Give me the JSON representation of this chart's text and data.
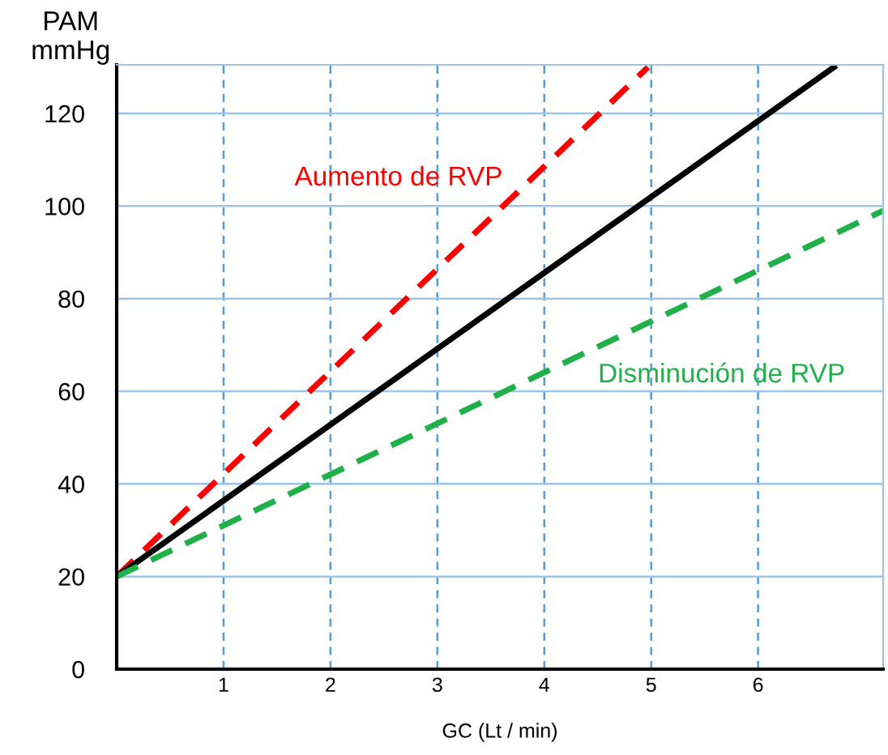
{
  "chart_data": {
    "type": "line",
    "xlabel": "GC (Lt / min)",
    "ylabel": "PAM\nmmHg",
    "xlim": [
      0,
      7.17
    ],
    "ylim": [
      0,
      130.5
    ],
    "xticks": [
      1,
      2,
      3,
      4,
      5,
      6
    ],
    "yticks": [
      0,
      20,
      40,
      60,
      80,
      100,
      120
    ],
    "grid": true,
    "legend": false,
    "marker": "none",
    "series": [
      {
        "color": "#ff0000",
        "line_style": "dashed",
        "x": [
          0,
          4.97
        ],
        "values": [
          20,
          130
        ]
      },
      {
        "color": "#000000",
        "line_style": "solid",
        "x": [
          0,
          6.71
        ],
        "values": [
          20,
          130
        ]
      },
      {
        "color": "#1fb04a",
        "line_style": "dashed",
        "x": [
          0,
          7.17
        ],
        "values": [
          20,
          99
        ]
      }
    ],
    "annotations": [
      "Aumento de RVP",
      "Disminución de RVP"
    ]
  }
}
